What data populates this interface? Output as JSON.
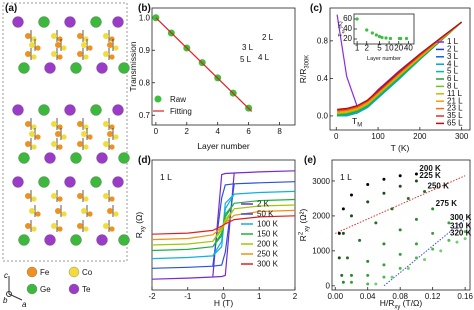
{
  "structure": {
    "panel_label": "(a)",
    "legend": [
      {
        "name": "Fe",
        "color": "#f0901e"
      },
      {
        "name": "Co",
        "color": "#f2dc3c"
      },
      {
        "name": "Ge",
        "color": "#3cb83c"
      },
      {
        "name": "Te",
        "color": "#9a3cc8"
      }
    ],
    "axes": [
      "c",
      "b",
      "a"
    ]
  },
  "chart_data": [
    {
      "panel_label": "(b)",
      "type": "scatter",
      "xlabel": [
        {
          "text": "Layer number"
        }
      ],
      "ylabel": [
        {
          "text": "Transmission"
        }
      ],
      "xlim": [
        -0.25,
        9
      ],
      "ylim": [
        0.67,
        1.03
      ],
      "xticks": [
        0,
        2,
        4,
        6,
        8
      ],
      "yticks": [
        0.7,
        0.8,
        0.9,
        {
          "value": 1.0,
          "label": "1.0"
        }
      ],
      "legend": "lower left",
      "inset_labels": [
        "2 L",
        "3 L",
        "5 L",
        "4 L"
      ],
      "series": [
        {
          "name": "Raw",
          "color": "#3cc03c",
          "mode": "markers",
          "x": [
            0,
            1,
            2,
            3,
            4,
            5,
            6
          ],
          "values": [
            1.0,
            0.953,
            0.907,
            0.862,
            0.815,
            0.768,
            0.722
          ]
        },
        {
          "name": "Fitting",
          "color": "#e02020",
          "mode": "lines",
          "x": [
            0,
            6.2
          ],
          "values": [
            1.0,
            0.712
          ]
        }
      ]
    },
    {
      "panel_label": "(c)",
      "type": "line",
      "xlabel": [
        {
          "text": "T (K)"
        }
      ],
      "ylabel": [
        {
          "text": "R/R"
        },
        {
          "text": "300K",
          "shift": "sub"
        }
      ],
      "annotation": [
        {
          "text": "T"
        },
        {
          "text": "M",
          "shift": "sub"
        }
      ],
      "xlim": [
        -15,
        320
      ],
      "ylim": [
        -0.15,
        1.15
      ],
      "xticks": [
        0,
        100,
        200,
        300
      ],
      "yticks": [
        {
          "value": 0,
          "label": "0.0"
        },
        0.4,
        0.8
      ],
      "legend": "right",
      "x": [
        2,
        25,
        50,
        75,
        100,
        150,
        200,
        250,
        300
      ],
      "series": [
        {
          "name": "1 L",
          "color": "#8a2be2",
          "mode": "lines",
          "values": [
            1.08,
            0.42,
            0.1,
            0.16,
            0.28,
            0.48,
            0.66,
            0.83,
            1
          ]
        },
        {
          "name": "2 L",
          "color": "#2040c0",
          "mode": "lines",
          "values": [
            0.02,
            0.02,
            0.04,
            0.12,
            0.22,
            0.42,
            0.62,
            0.81,
            1
          ]
        },
        {
          "name": "3 L",
          "color": "#1060e0",
          "mode": "lines",
          "values": [
            0.01,
            0.01,
            0.03,
            0.1,
            0.2,
            0.4,
            0.61,
            0.8,
            1
          ]
        },
        {
          "name": "4 L",
          "color": "#00a0e0",
          "mode": "lines",
          "values": [
            0.0,
            0.0,
            0.03,
            0.09,
            0.19,
            0.39,
            0.6,
            0.8,
            1
          ]
        },
        {
          "name": "5 L",
          "color": "#00b8b0",
          "mode": "lines",
          "values": [
            0.0,
            0.01,
            0.04,
            0.1,
            0.2,
            0.4,
            0.6,
            0.8,
            1
          ]
        },
        {
          "name": "6 L",
          "color": "#20a040",
          "mode": "lines",
          "values": [
            0.01,
            0.02,
            0.05,
            0.11,
            0.21,
            0.41,
            0.61,
            0.8,
            1
          ]
        },
        {
          "name": "8 L",
          "color": "#70c020",
          "mode": "lines",
          "values": [
            0.02,
            0.03,
            0.06,
            0.12,
            0.22,
            0.42,
            0.62,
            0.81,
            1
          ]
        },
        {
          "name": "11 L",
          "color": "#c0c000",
          "mode": "lines",
          "values": [
            0.03,
            0.04,
            0.07,
            0.13,
            0.23,
            0.43,
            0.62,
            0.81,
            1
          ]
        },
        {
          "name": "21 L",
          "color": "#f0a000",
          "mode": "lines",
          "values": [
            0.04,
            0.05,
            0.08,
            0.14,
            0.24,
            0.44,
            0.63,
            0.82,
            1
          ]
        },
        {
          "name": "23 L",
          "color": "#f07010",
          "mode": "lines",
          "values": [
            0.05,
            0.06,
            0.09,
            0.15,
            0.25,
            0.45,
            0.64,
            0.82,
            1
          ]
        },
        {
          "name": "35 L",
          "color": "#e03020",
          "mode": "lines",
          "values": [
            0.06,
            0.07,
            0.1,
            0.16,
            0.26,
            0.46,
            0.65,
            0.83,
            1
          ]
        },
        {
          "name": "65 L",
          "color": "#b01010",
          "mode": "lines",
          "values": [
            0.07,
            0.08,
            0.11,
            0.17,
            0.27,
            0.47,
            0.66,
            0.83,
            1
          ]
        }
      ]
    },
    {
      "type": "scatter",
      "xlog": true,
      "xlabel": [
        {
          "text": "Layer number"
        }
      ],
      "ylabel": [
        {
          "text": "T"
        },
        {
          "text": "M",
          "shift": "sub"
        },
        {
          "text": " (K)"
        }
      ],
      "xlim": [
        0.8,
        60
      ],
      "ylim": [
        10,
        70
      ],
      "xticks": [
        1,
        2,
        5,
        10,
        20,
        40
      ],
      "yticks": [
        20,
        40,
        60
      ],
      "series": [
        {
          "color": "#3cc03c",
          "mode": "markers",
          "x": [
            1,
            2,
            3,
            4,
            5,
            6,
            8,
            11,
            21,
            23,
            35
          ],
          "values": [
            60,
            38,
            32,
            28,
            25,
            23,
            22,
            21,
            21,
            21,
            21
          ]
        }
      ]
    },
    {
      "panel_label": "(d)",
      "type": "line",
      "xlabel": [
        {
          "text": "H (T)"
        }
      ],
      "ylabel": [
        {
          "text": "R"
        },
        {
          "text": "xy",
          "shift": "sub"
        },
        {
          "text": " (Ω)"
        }
      ],
      "annotation": [
        {
          "text": "1 L"
        }
      ],
      "xlim": [
        -2,
        2
      ],
      "ylim": [
        -1.2,
        1.2
      ],
      "xticks": [
        -2,
        -1,
        0,
        1,
        2
      ],
      "legend": "right",
      "x": [
        -2,
        -1,
        -0.3,
        -0.05,
        0.05,
        0.3,
        1,
        2,
        1,
        0.3,
        0.05,
        -0.05,
        -0.3,
        -1,
        -2
      ],
      "series": [
        {
          "name": "2 K",
          "color": "#7a28d0",
          "mode": "lines",
          "values": [
            -1,
            -0.98,
            -0.96,
            -0.95,
            -0.93,
            0.96,
            0.98,
            1,
            0.98,
            0.96,
            0.95,
            0.93,
            -0.96,
            -0.98,
            -1
          ]
        },
        {
          "name": "50 K",
          "color": "#2a50e0",
          "mode": "lines",
          "values": [
            -0.8,
            -0.78,
            -0.76,
            -0.74,
            -0.5,
            0.76,
            0.78,
            0.8,
            0.78,
            0.76,
            0.74,
            0.5,
            -0.76,
            -0.78,
            -0.8
          ]
        },
        {
          "name": "100 K",
          "color": "#10b0e0",
          "mode": "lines",
          "values": [
            -0.62,
            -0.6,
            -0.57,
            -0.4,
            0.3,
            0.57,
            0.6,
            0.62,
            0.6,
            0.57,
            0.4,
            -0.3,
            -0.57,
            -0.6,
            -0.62
          ]
        },
        {
          "name": "150 K",
          "color": "#20b040",
          "mode": "lines",
          "values": [
            -0.47,
            -0.45,
            -0.4,
            -0.2,
            0.15,
            0.4,
            0.45,
            0.47,
            0.45,
            0.4,
            0.2,
            -0.15,
            -0.4,
            -0.45,
            -0.47
          ]
        },
        {
          "name": "200 K",
          "color": "#a0c800",
          "mode": "lines",
          "values": [
            -0.37,
            -0.35,
            -0.3,
            -0.1,
            0.05,
            0.3,
            0.35,
            0.37,
            0.35,
            0.3,
            0.1,
            -0.05,
            -0.3,
            -0.35,
            -0.37
          ]
        },
        {
          "name": "250 K",
          "color": "#f09010",
          "mode": "lines",
          "values": [
            -0.27,
            -0.25,
            -0.18,
            -0.04,
            0.04,
            0.18,
            0.25,
            0.27,
            0.25,
            0.18,
            0.04,
            -0.04,
            -0.18,
            -0.25,
            -0.27
          ]
        },
        {
          "name": "300 K",
          "color": "#e02020",
          "mode": "lines",
          "values": [
            -0.17,
            -0.15,
            -0.1,
            -0.02,
            0.02,
            0.1,
            0.15,
            0.17,
            0.15,
            0.1,
            0.02,
            -0.02,
            -0.1,
            -0.15,
            -0.17
          ]
        }
      ]
    },
    {
      "panel_label": "(e)",
      "type": "scatter",
      "xlabel": [
        {
          "text": "H/R"
        },
        {
          "text": "xy",
          "shift": "sub"
        },
        {
          "text": " (T/Ω)"
        }
      ],
      "ylabel": [
        {
          "text": "R"
        },
        {
          "text": "2",
          "shift": "super"
        },
        {
          "text": "xy",
          "shift": "sub"
        },
        {
          "text": " (Ω²)"
        }
      ],
      "annotation": [
        {
          "text": "1 L"
        }
      ],
      "xlim": [
        -0.004,
        0.166
      ],
      "ylim": [
        -120,
        3600
      ],
      "xticks": [
        {
          "value": 0,
          "label": "0.00"
        },
        {
          "value": 0.04,
          "label": "0.04"
        },
        {
          "value": 0.08,
          "label": "0.08"
        },
        {
          "value": 0.12,
          "label": "0.12"
        },
        {
          "value": 0.16,
          "label": "0.16"
        }
      ],
      "yticks": [
        0,
        1000,
        2000,
        3000
      ],
      "legend": "inline",
      "fit_lines": [
        {
          "color": "#e03030",
          "x": [
            0,
            0.16
          ],
          "values": [
            1500,
            3150
          ]
        },
        {
          "color": "#3050e0",
          "x": [
            0.06,
            0.16
          ],
          "values": [
            0,
            1900
          ]
        }
      ],
      "series": [
        {
          "name": "200 K",
          "color": "#000000",
          "mode": "markers",
          "x": [
            0.005,
            0.01,
            0.02,
            0.04,
            0.06,
            0.08,
            0.1
          ],
          "values": [
            1500,
            2200,
            2600,
            2900,
            3050,
            3150,
            3200
          ]
        },
        {
          "name": "225 K",
          "color": "#1a4d1a",
          "mode": "markers",
          "x": [
            0.005,
            0.01,
            0.02,
            0.04,
            0.06,
            0.08,
            0.1
          ],
          "values": [
            800,
            1500,
            2000,
            2400,
            2650,
            2850,
            3000
          ]
        },
        {
          "name": "250 K",
          "color": "#2e6b2e",
          "mode": "markers",
          "x": [
            0.008,
            0.015,
            0.03,
            0.05,
            0.07,
            0.09,
            0.11
          ],
          "values": [
            300,
            800,
            1300,
            1800,
            2200,
            2500,
            2700
          ]
        },
        {
          "name": "275 K",
          "color": "#2a8a2a",
          "mode": "markers",
          "x": [
            0.01,
            0.02,
            0.04,
            0.06,
            0.08,
            0.1,
            0.12
          ],
          "values": [
            100,
            300,
            700,
            1200,
            1600,
            1900,
            2200
          ]
        },
        {
          "name": "300 K",
          "color": "#3aa03a",
          "mode": "markers",
          "x": [
            0.02,
            0.04,
            0.06,
            0.08,
            0.1,
            0.12,
            0.14
          ],
          "values": [
            100,
            300,
            600,
            900,
            1200,
            1500,
            1800
          ]
        },
        {
          "name": "310 K",
          "color": "#50b850",
          "mode": "markers",
          "x": [
            0.04,
            0.06,
            0.08,
            0.1,
            0.12,
            0.14,
            0.16
          ],
          "values": [
            50,
            250,
            500,
            800,
            1050,
            1300,
            1550
          ]
        },
        {
          "name": "320 K",
          "color": "#70d070",
          "mode": "markers",
          "x": [
            0.05,
            0.07,
            0.09,
            0.11,
            0.13,
            0.15,
            0.16
          ],
          "values": [
            50,
            250,
            500,
            750,
            1000,
            1250,
            1350
          ]
        }
      ]
    }
  ]
}
